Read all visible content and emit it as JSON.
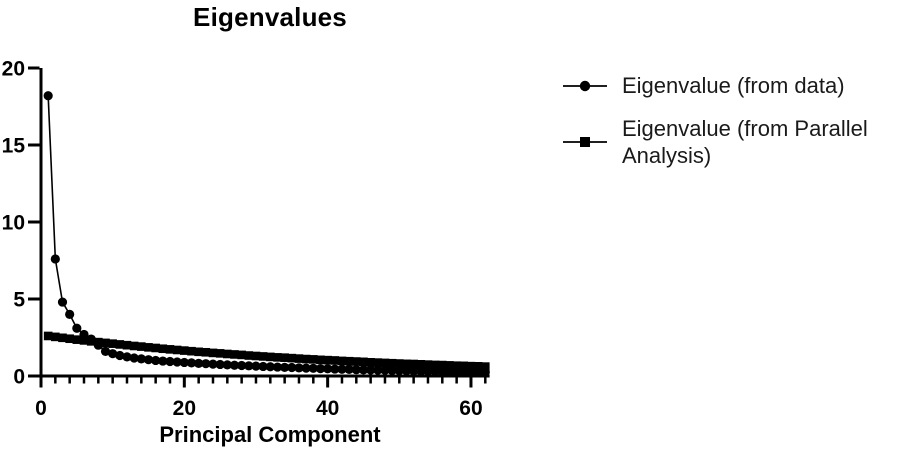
{
  "colors": {
    "ink": "#000000",
    "background": "#ffffff"
  },
  "legend": {
    "entries": [
      {
        "label": "Eigenvalue (from data)",
        "marker": "circle"
      },
      {
        "label": "Eigenvalue (from Parallel Analysis)",
        "marker": "square"
      }
    ]
  },
  "chart_data": {
    "type": "line",
    "title": "Eigenvalues",
    "xlabel": "Principal Component",
    "ylabel": "",
    "xlim": [
      0,
      62.6
    ],
    "ylim": [
      0,
      20
    ],
    "xticks": [
      0,
      20,
      40,
      60
    ],
    "xminor_step": 2,
    "xminor_max": 62,
    "yticks": [
      0,
      5,
      10,
      15,
      20
    ],
    "grid": false,
    "legend_position": "right-outside",
    "x": [
      1,
      2,
      3,
      4,
      5,
      6,
      7,
      8,
      9,
      10,
      11,
      12,
      13,
      14,
      15,
      16,
      17,
      18,
      19,
      20,
      21,
      22,
      23,
      24,
      25,
      26,
      27,
      28,
      29,
      30,
      31,
      32,
      33,
      34,
      35,
      36,
      37,
      38,
      39,
      40,
      41,
      42,
      43,
      44,
      45,
      46,
      47,
      48,
      49,
      50,
      51,
      52,
      53,
      54,
      55,
      56,
      57,
      58,
      59,
      60,
      61,
      62
    ],
    "series": [
      {
        "name": "Eigenvalue (from data)",
        "marker": "circle",
        "values": [
          18.2,
          7.6,
          4.8,
          4.0,
          3.1,
          2.7,
          2.4,
          2.0,
          1.6,
          1.45,
          1.33,
          1.24,
          1.17,
          1.11,
          1.06,
          1.01,
          0.97,
          0.94,
          0.91,
          0.88,
          0.85,
          0.82,
          0.8,
          0.77,
          0.75,
          0.72,
          0.7,
          0.68,
          0.66,
          0.64,
          0.62,
          0.6,
          0.58,
          0.56,
          0.55,
          0.53,
          0.51,
          0.5,
          0.48,
          0.47,
          0.45,
          0.44,
          0.43,
          0.41,
          0.4,
          0.39,
          0.38,
          0.37,
          0.36,
          0.35,
          0.34,
          0.33,
          0.32,
          0.31,
          0.3,
          0.29,
          0.29,
          0.28,
          0.27,
          0.27,
          0.26,
          0.26
        ]
      },
      {
        "name": "Eigenvalue (from Parallel Analysis)",
        "marker": "square",
        "values": [
          2.6,
          2.54,
          2.48,
          2.42,
          2.36,
          2.31,
          2.25,
          2.2,
          2.15,
          2.1,
          2.05,
          2.0,
          1.95,
          1.91,
          1.86,
          1.82,
          1.77,
          1.73,
          1.69,
          1.65,
          1.61,
          1.57,
          1.54,
          1.5,
          1.47,
          1.43,
          1.4,
          1.37,
          1.33,
          1.3,
          1.27,
          1.24,
          1.21,
          1.19,
          1.16,
          1.13,
          1.1,
          1.08,
          1.05,
          1.03,
          1.01,
          0.98,
          0.96,
          0.94,
          0.92,
          0.89,
          0.87,
          0.85,
          0.83,
          0.81,
          0.79,
          0.78,
          0.76,
          0.74,
          0.72,
          0.71,
          0.69,
          0.67,
          0.66,
          0.64,
          0.63,
          0.61
        ]
      }
    ]
  }
}
